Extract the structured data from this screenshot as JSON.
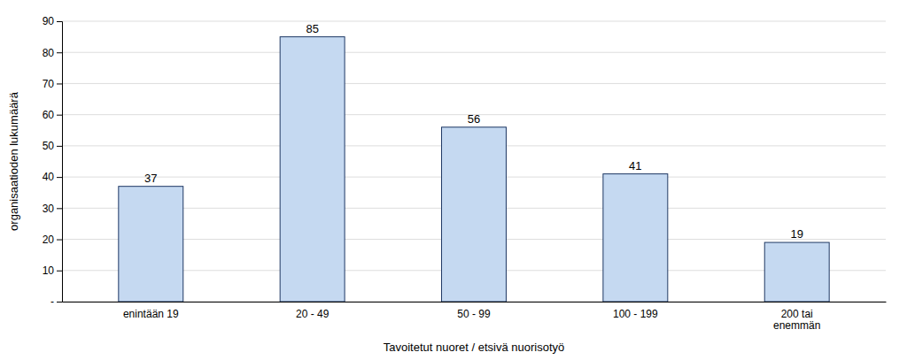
{
  "chart_data": {
    "type": "bar",
    "categories": [
      "enintään 19",
      "20 - 49",
      "50 - 99",
      "100 - 199",
      "200 tai\nenemmän"
    ],
    "values": [
      37,
      85,
      56,
      41,
      19
    ],
    "color": "#c5d9f1",
    "xlabel": "Tavoitetut nuoret / etsivä nuorisotyö",
    "ylabel": "organisaatioden lukumäärä",
    "ylim": [
      0,
      90
    ],
    "yticks": [
      {
        "value": 0,
        "label": "-"
      },
      10,
      20,
      30,
      40,
      50,
      60,
      70,
      80,
      90
    ],
    "grid": true,
    "data_labels": true
  }
}
